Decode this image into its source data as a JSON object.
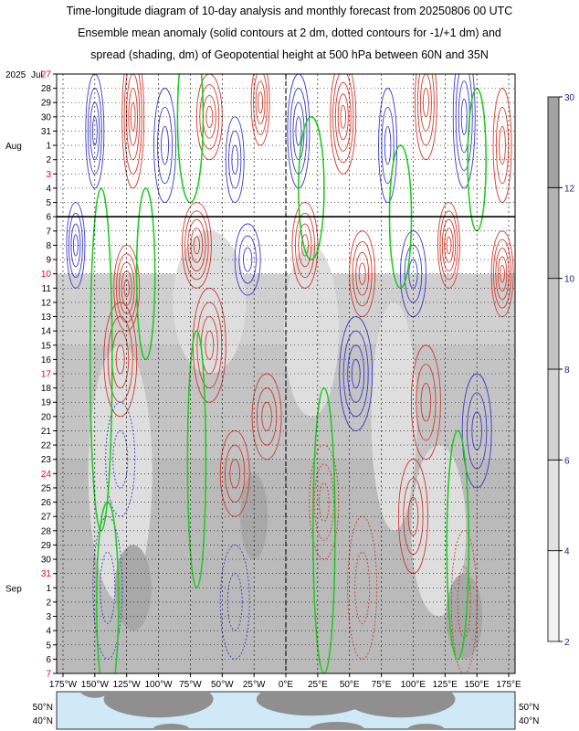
{
  "title_lines": [
    "Time-longitude diagram of 10-day analysis and monthly forecast from 20250806 00 UTC",
    "Ensemble mean anomaly (solid contours at 2 dm, dotted contours for -1/+1 dm) and",
    "spread (shading, dm) of Geopotential height at 500 hPa between 60N and 35N"
  ],
  "chart_data": {
    "type": "heatmap",
    "year_label": "2025",
    "month_jul": "Jul",
    "month_aug": "Aug",
    "month_sep": "Sep",
    "dates": [
      {
        "label": "27",
        "red": true
      },
      {
        "label": "28",
        "red": false
      },
      {
        "label": "29",
        "red": false
      },
      {
        "label": "30",
        "red": false
      },
      {
        "label": "31",
        "red": false
      },
      {
        "label": "1",
        "red": false
      },
      {
        "label": "2",
        "red": false
      },
      {
        "label": "3",
        "red": true
      },
      {
        "label": "4",
        "red": false
      },
      {
        "label": "5",
        "red": false
      },
      {
        "label": "6",
        "red": false
      },
      {
        "label": "7",
        "red": false
      },
      {
        "label": "8",
        "red": false
      },
      {
        "label": "9",
        "red": false
      },
      {
        "label": "10",
        "red": true
      },
      {
        "label": "11",
        "red": false
      },
      {
        "label": "12",
        "red": false
      },
      {
        "label": "13",
        "red": false
      },
      {
        "label": "14",
        "red": false
      },
      {
        "label": "15",
        "red": false
      },
      {
        "label": "16",
        "red": false
      },
      {
        "label": "17",
        "red": true
      },
      {
        "label": "18",
        "red": false
      },
      {
        "label": "19",
        "red": false
      },
      {
        "label": "20",
        "red": false
      },
      {
        "label": "21",
        "red": false
      },
      {
        "label": "22",
        "red": false
      },
      {
        "label": "23",
        "red": false
      },
      {
        "label": "24",
        "red": true
      },
      {
        "label": "25",
        "red": false
      },
      {
        "label": "26",
        "red": false
      },
      {
        "label": "27",
        "red": false
      },
      {
        "label": "28",
        "red": false
      },
      {
        "label": "29",
        "red": false
      },
      {
        "label": "30",
        "red": false
      },
      {
        "label": "31",
        "red": true
      },
      {
        "label": "1",
        "red": false
      },
      {
        "label": "2",
        "red": false
      },
      {
        "label": "3",
        "red": false
      },
      {
        "label": "4",
        "red": false
      },
      {
        "label": "5",
        "red": false
      },
      {
        "label": "6",
        "red": false
      },
      {
        "label": "7",
        "red": true
      }
    ],
    "forecast_start_index": 10,
    "lon_ticks": [
      {
        "lon": -175,
        "label": "175°W"
      },
      {
        "lon": -150,
        "label": "150°W"
      },
      {
        "lon": -125,
        "label": "125°W"
      },
      {
        "lon": -100,
        "label": "100°W"
      },
      {
        "lon": -75,
        "label": "75°W"
      },
      {
        "lon": -50,
        "label": "50°W"
      },
      {
        "lon": -25,
        "label": "25°W"
      },
      {
        "lon": 0,
        "label": "0°E"
      },
      {
        "lon": 25,
        "label": "25°E"
      },
      {
        "lon": 50,
        "label": "50°E"
      },
      {
        "lon": 75,
        "label": "75°E"
      },
      {
        "lon": 100,
        "label": "100°E"
      },
      {
        "lon": 125,
        "label": "125°E"
      },
      {
        "lon": 150,
        "label": "150°E"
      },
      {
        "lon": 175,
        "label": "175°E"
      }
    ],
    "xlim": [
      -180,
      180
    ],
    "colorbar": {
      "ticks": [
        {
          "value": 2,
          "label": "2"
        },
        {
          "value": 4,
          "label": "4"
        },
        {
          "value": 6,
          "label": "6"
        },
        {
          "value": 8,
          "label": "8"
        },
        {
          "value": 10,
          "label": "10"
        },
        {
          "value": 12,
          "label": "12"
        },
        {
          "value": 30,
          "label": "30"
        }
      ],
      "colors": [
        "#f2f2f2",
        "#e2e2e2",
        "#d2d2d2",
        "#c2c2c2",
        "#b2b2b2",
        "#a2a2a2"
      ]
    },
    "map_lat_labels": [
      "50°N",
      "40°N"
    ],
    "colors": {
      "positive": "#d73a2c",
      "negative": "#3a3ad0",
      "zero": "#22cc22",
      "date_red": "#e8001c",
      "tick_blue": "#1f1f7a"
    }
  }
}
